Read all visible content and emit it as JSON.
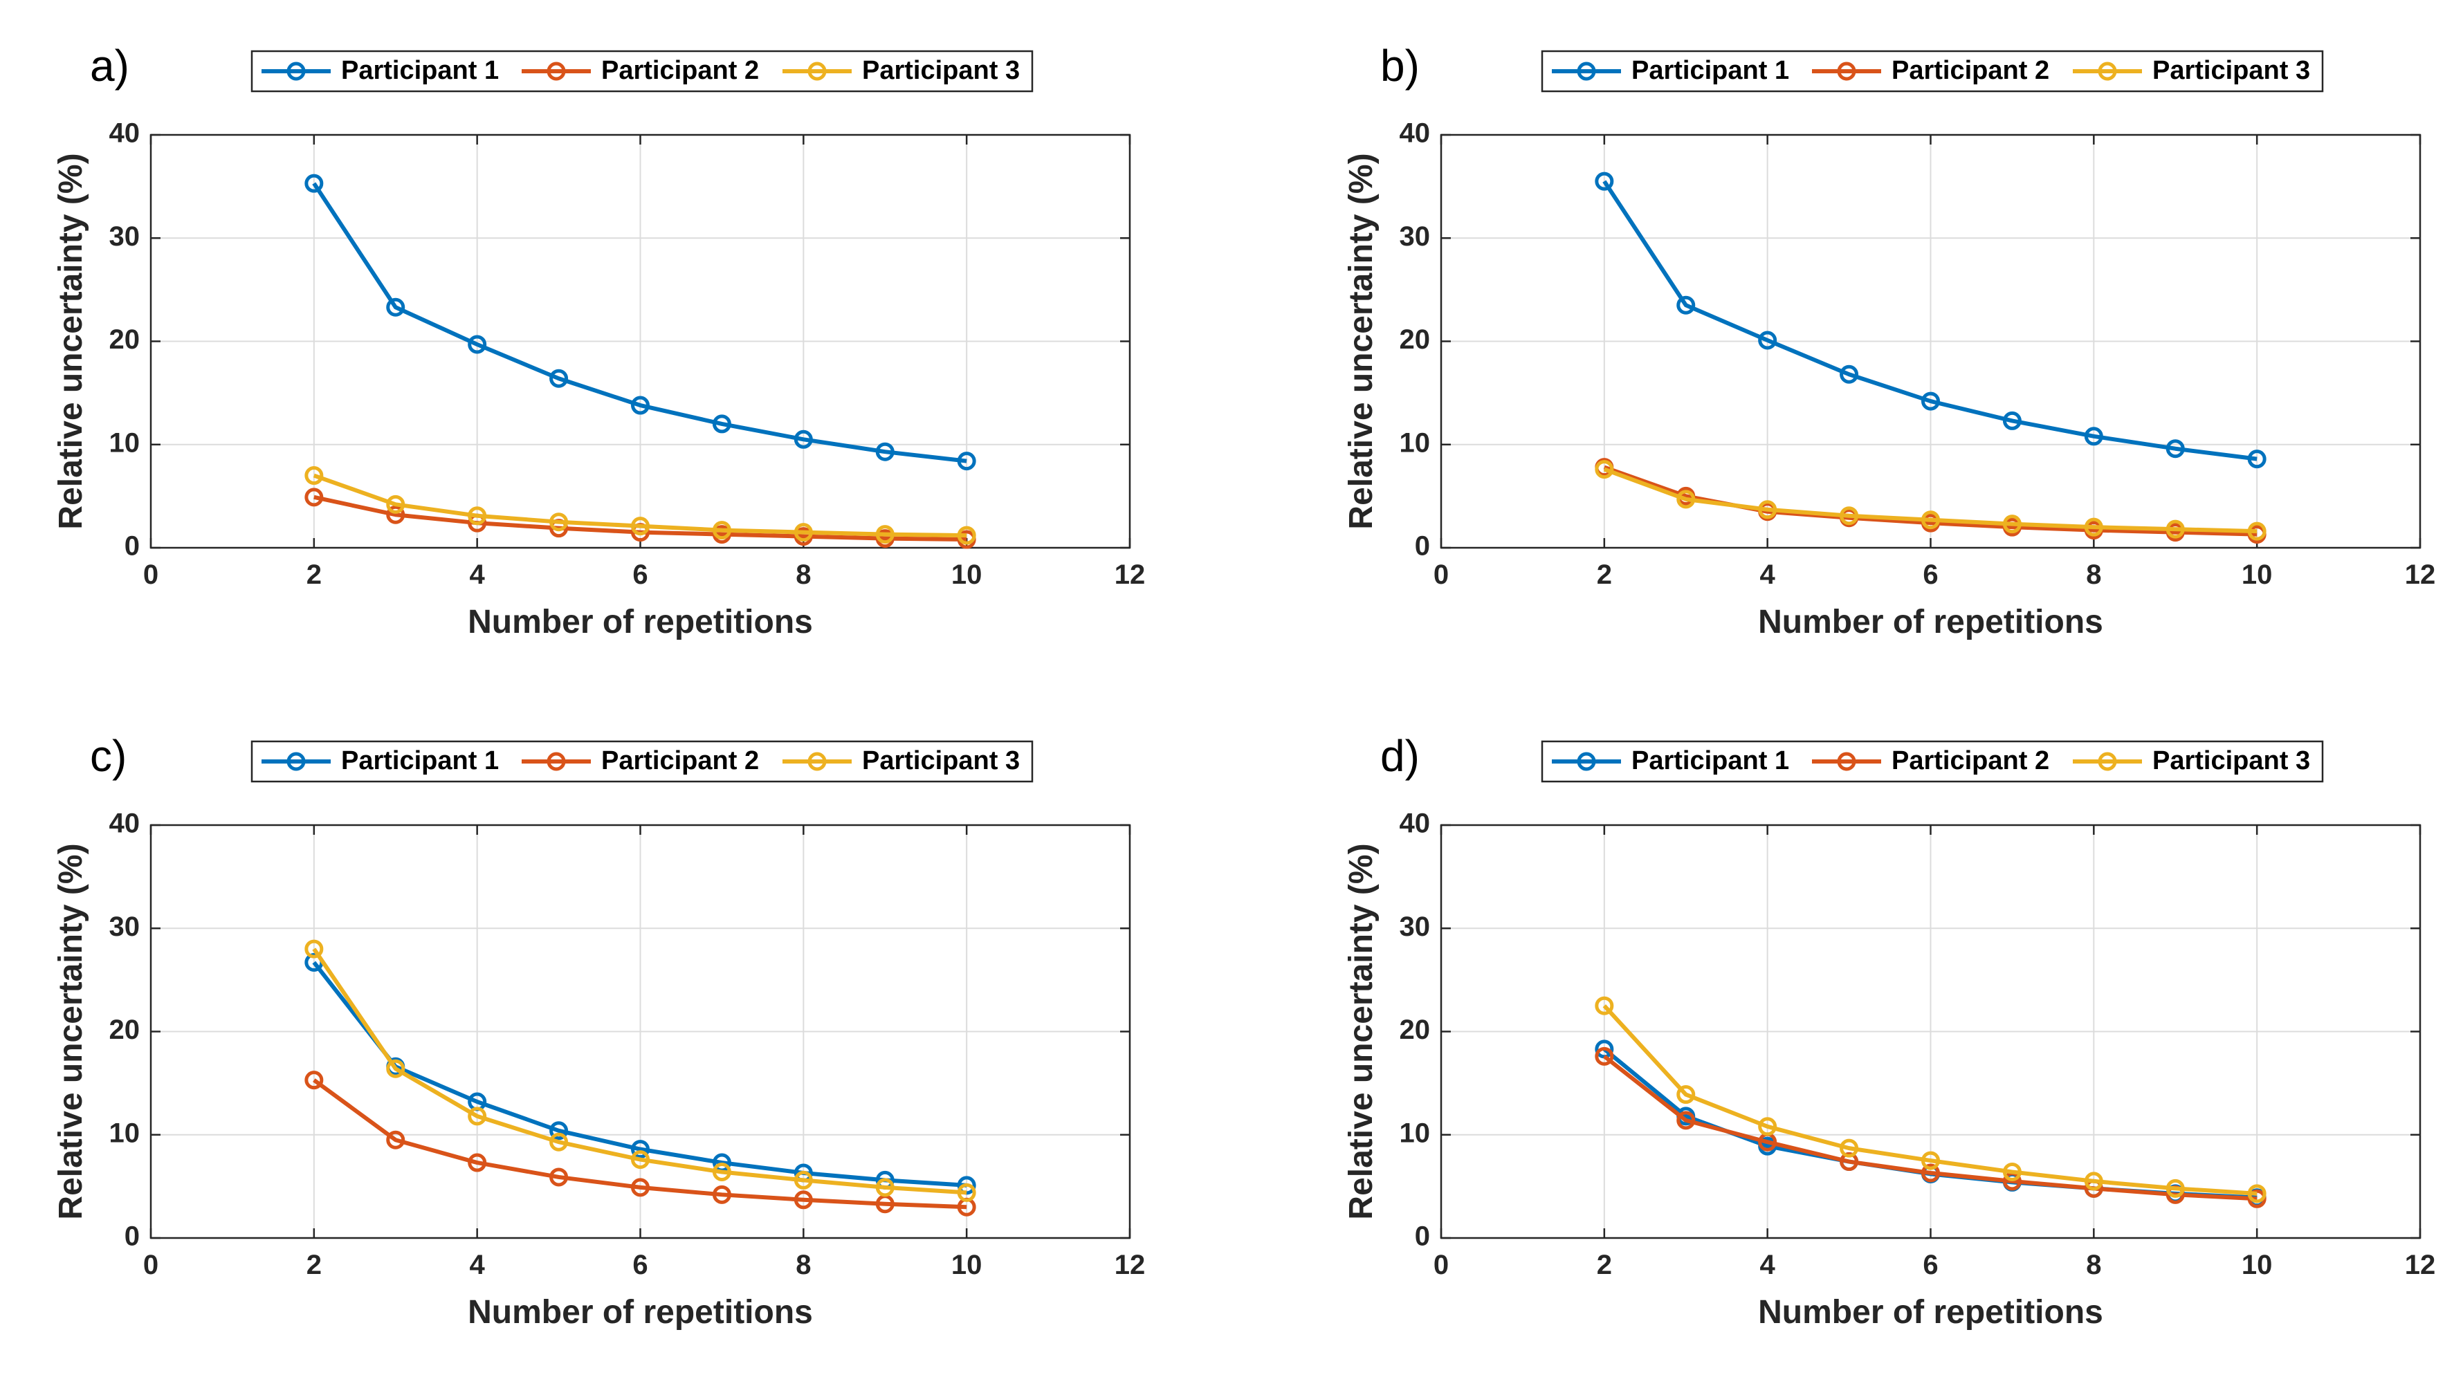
{
  "colors": {
    "participant_1": "#0072BD",
    "participant_2": "#D95319",
    "participant_3": "#EDB120"
  },
  "chart_data": [
    {
      "type": "line",
      "panel_label": "a)",
      "xlabel": "Number of repetitions",
      "ylabel": "Relative uncertainty (%)",
      "xlim": [
        0,
        12
      ],
      "ylim": [
        0,
        40
      ],
      "xticks": [
        0,
        2,
        4,
        6,
        8,
        10,
        12
      ],
      "yticks": [
        0,
        10,
        20,
        30,
        40
      ],
      "grid": true,
      "legend": "top, horizontal",
      "x": [
        2,
        3,
        4,
        5,
        6,
        7,
        8,
        9,
        10
      ],
      "series": [
        {
          "name": "Participant 1",
          "values": [
            35.3,
            23.3,
            19.7,
            16.4,
            13.8,
            12.0,
            10.5,
            9.3,
            8.4
          ]
        },
        {
          "name": "Participant 2",
          "values": [
            4.9,
            3.2,
            2.4,
            1.9,
            1.5,
            1.3,
            1.1,
            0.9,
            0.8
          ]
        },
        {
          "name": "Participant 3",
          "values": [
            7.0,
            4.2,
            3.1,
            2.5,
            2.1,
            1.7,
            1.5,
            1.3,
            1.2
          ]
        }
      ]
    },
    {
      "type": "line",
      "panel_label": "b)",
      "xlabel": "Number of repetitions",
      "ylabel": "Relative uncertainty (%)",
      "xlim": [
        0,
        12
      ],
      "ylim": [
        0,
        40
      ],
      "xticks": [
        0,
        2,
        4,
        6,
        8,
        10,
        12
      ],
      "yticks": [
        0,
        10,
        20,
        30,
        40
      ],
      "grid": true,
      "legend": "top, horizontal",
      "x": [
        2,
        3,
        4,
        5,
        6,
        7,
        8,
        9,
        10
      ],
      "series": [
        {
          "name": "Participant 1",
          "values": [
            35.5,
            23.5,
            20.1,
            16.8,
            14.2,
            12.3,
            10.8,
            9.6,
            8.6
          ]
        },
        {
          "name": "Participant 2",
          "values": [
            7.8,
            5.0,
            3.5,
            2.9,
            2.4,
            2.0,
            1.7,
            1.5,
            1.3
          ]
        },
        {
          "name": "Participant 3",
          "values": [
            7.6,
            4.7,
            3.7,
            3.1,
            2.7,
            2.3,
            2.0,
            1.8,
            1.6
          ]
        }
      ]
    },
    {
      "type": "line",
      "panel_label": "c)",
      "xlabel": "Number of repetitions",
      "ylabel": "Relative uncertainty (%)",
      "xlim": [
        0,
        12
      ],
      "ylim": [
        0,
        40
      ],
      "xticks": [
        0,
        2,
        4,
        6,
        8,
        10,
        12
      ],
      "yticks": [
        0,
        10,
        20,
        30,
        40
      ],
      "grid": true,
      "legend": "top, horizontal",
      "x": [
        2,
        3,
        4,
        5,
        6,
        7,
        8,
        9,
        10
      ],
      "series": [
        {
          "name": "Participant 1",
          "values": [
            26.7,
            16.6,
            13.2,
            10.4,
            8.6,
            7.3,
            6.3,
            5.6,
            5.1
          ]
        },
        {
          "name": "Participant 2",
          "values": [
            15.3,
            9.5,
            7.3,
            5.9,
            4.9,
            4.2,
            3.7,
            3.3,
            3.0
          ]
        },
        {
          "name": "Participant 3",
          "values": [
            28.0,
            16.4,
            11.8,
            9.3,
            7.6,
            6.4,
            5.6,
            4.9,
            4.4
          ]
        }
      ]
    },
    {
      "type": "line",
      "panel_label": "d)",
      "xlabel": "Number of repetitions",
      "ylabel": "Relative uncertainty (%)",
      "xlim": [
        0,
        12
      ],
      "ylim": [
        0,
        40
      ],
      "xticks": [
        0,
        2,
        4,
        6,
        8,
        10,
        12
      ],
      "yticks": [
        0,
        10,
        20,
        30,
        40
      ],
      "grid": true,
      "legend": "top, horizontal",
      "x": [
        2,
        3,
        4,
        5,
        6,
        7,
        8,
        9,
        10
      ],
      "series": [
        {
          "name": "Participant 1",
          "values": [
            18.3,
            11.8,
            8.9,
            7.4,
            6.2,
            5.4,
            4.8,
            4.3,
            3.9
          ]
        },
        {
          "name": "Participant 2",
          "values": [
            17.6,
            11.4,
            9.3,
            7.4,
            6.3,
            5.5,
            4.8,
            4.2,
            3.8
          ]
        },
        {
          "name": "Participant 3",
          "values": [
            22.5,
            13.9,
            10.8,
            8.7,
            7.5,
            6.4,
            5.5,
            4.8,
            4.3
          ]
        }
      ]
    }
  ]
}
